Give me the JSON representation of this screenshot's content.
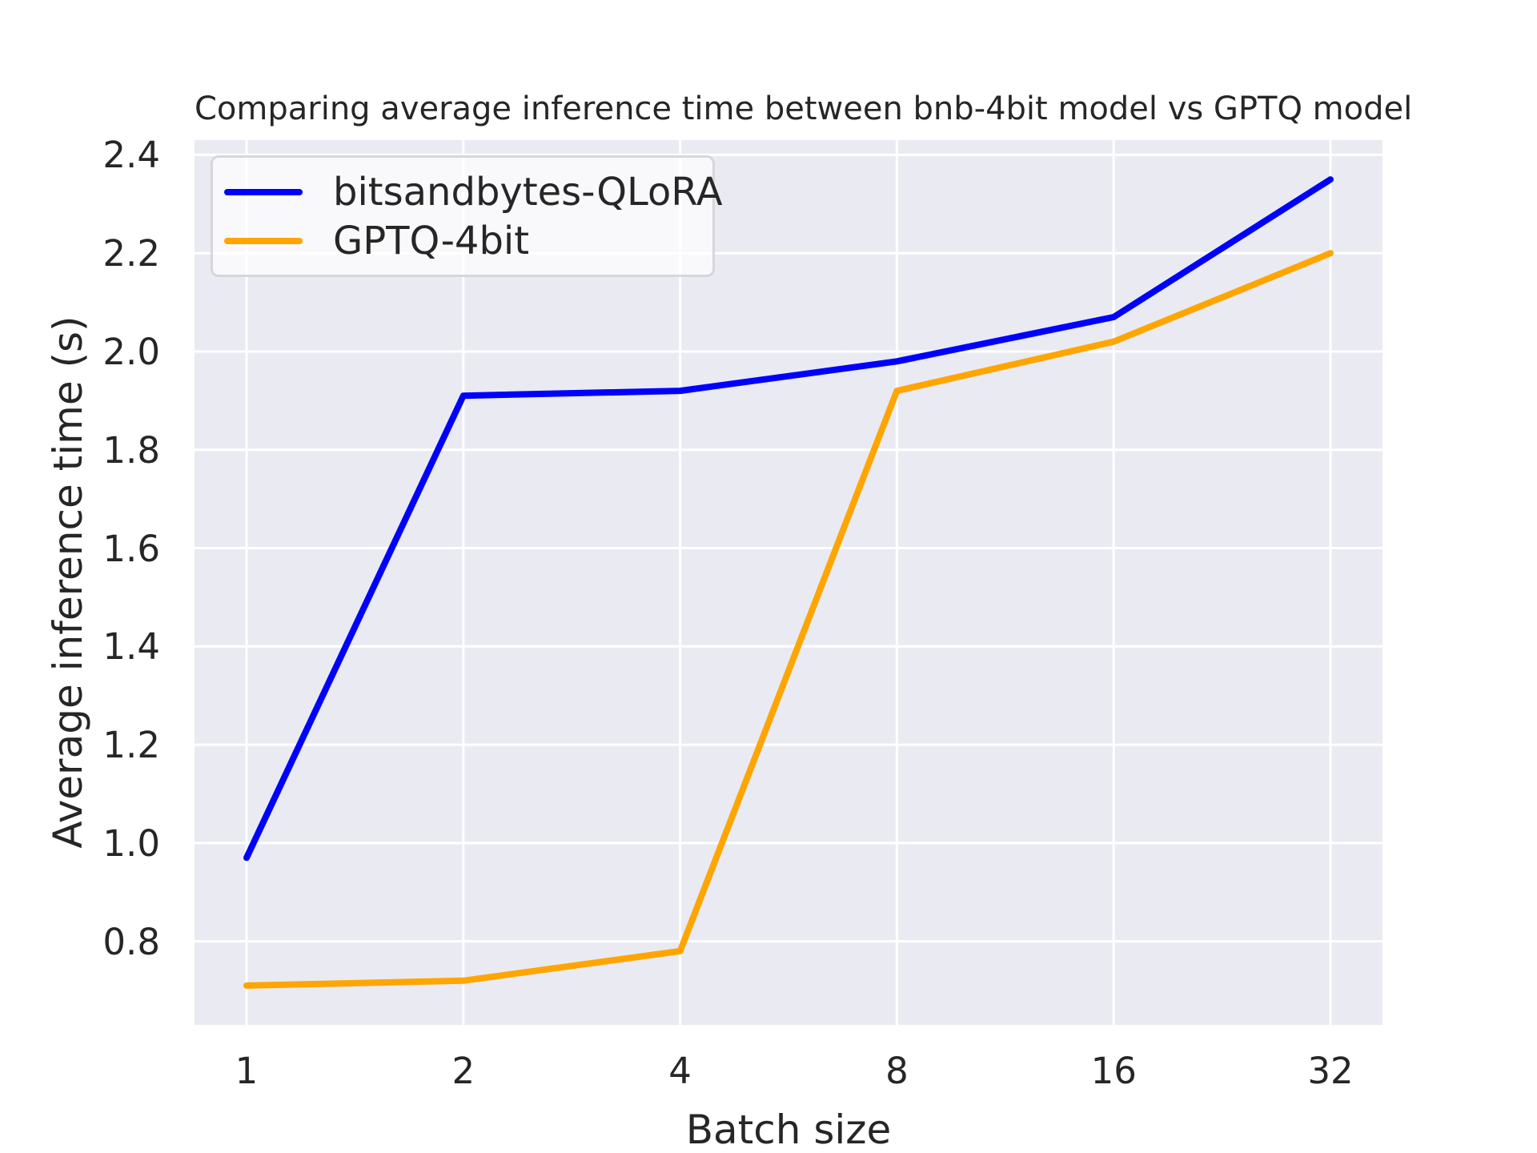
{
  "chart_data": {
    "type": "line",
    "title": "Comparing average inference time between bnb-4bit model vs GPTQ model",
    "xlabel": "Batch size",
    "ylabel": "Average inference time (s)",
    "categories": [
      "1",
      "2",
      "4",
      "8",
      "16",
      "32"
    ],
    "series": [
      {
        "name": "bitsandbytes-QLoRA",
        "color": "#0000ff",
        "values": [
          0.97,
          1.91,
          1.92,
          1.98,
          2.07,
          2.35
        ]
      },
      {
        "name": "GPTQ-4bit",
        "color": "#ffa500",
        "values": [
          0.71,
          0.72,
          0.78,
          1.92,
          2.02,
          2.2
        ]
      }
    ],
    "yticks": [
      0.8,
      1.0,
      1.2,
      1.4,
      1.6,
      1.8,
      2.0,
      2.2,
      2.4
    ],
    "ylim": [
      0.63,
      2.43
    ],
    "grid": true,
    "grid_color": "#ffffff",
    "plot_bg": "#eaeaf2",
    "legend_position": "upper-left"
  }
}
